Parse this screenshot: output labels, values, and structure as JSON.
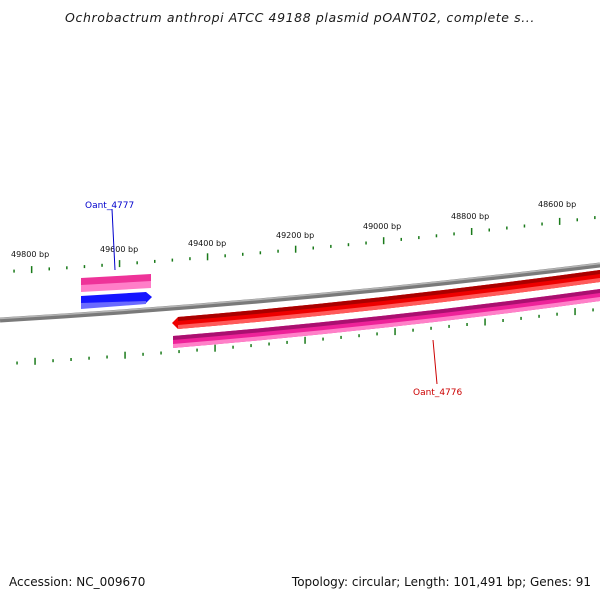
{
  "title": "Ochrobactrum anthropi ATCC 49188 plasmid pOANT02, complete s...",
  "footer": {
    "accession": "Accession: NC_009670",
    "summary": "Topology: circular; Length: 101,491 bp; Genes: 91"
  },
  "ticks": [
    {
      "label": "49800 bp"
    },
    {
      "label": "49600 bp"
    },
    {
      "label": "49400 bp"
    },
    {
      "label": "49200 bp"
    },
    {
      "label": "49000 bp"
    },
    {
      "label": "48800 bp"
    },
    {
      "label": "48600 bp"
    }
  ],
  "genes": [
    {
      "name": "Oant_4777",
      "color": "#0000cc"
    },
    {
      "name": "Oant_4776",
      "color": "#cc0000"
    }
  ],
  "colors": {
    "backbone": "#808080",
    "tick": "#1a7a1a",
    "cds_forward": "#1010ff",
    "cds_reverse": "#ee0000",
    "gene_feature": "#ee2299"
  }
}
